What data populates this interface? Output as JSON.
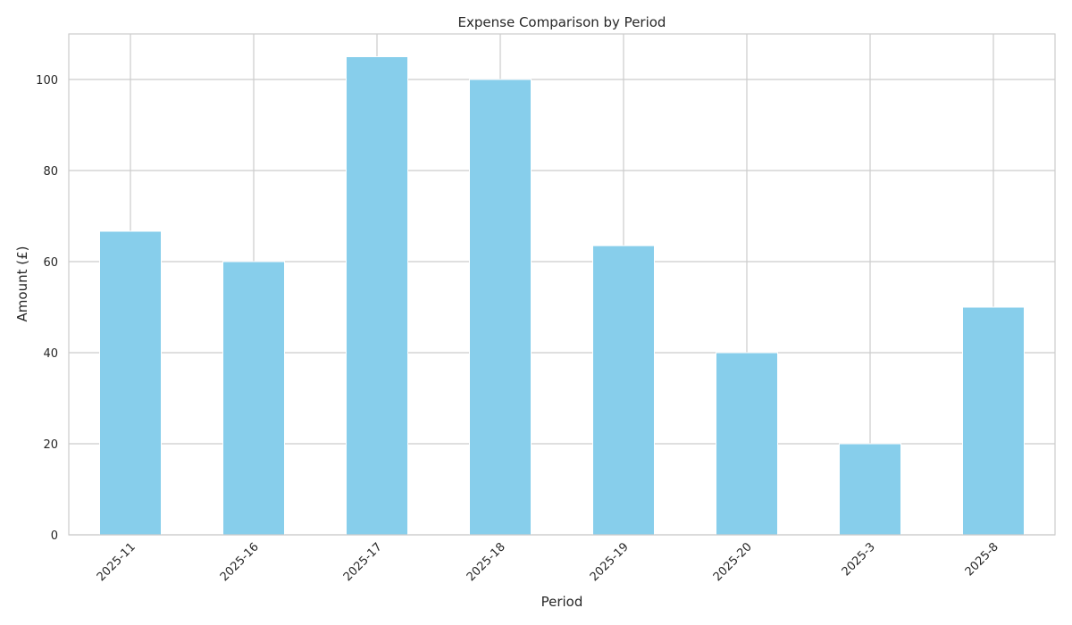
{
  "chart_data": {
    "type": "bar",
    "title": "Expense Comparison by Period",
    "xlabel": "Period",
    "ylabel": "Amount (£)",
    "categories": [
      "2025-11",
      "2025-16",
      "2025-17",
      "2025-18",
      "2025-19",
      "2025-20",
      "2025-3",
      "2025-8"
    ],
    "values": [
      66.67,
      60,
      105,
      100,
      63.5,
      40,
      20,
      50
    ],
    "ylim": [
      0,
      110
    ],
    "yticks": [
      0,
      20,
      40,
      60,
      80,
      100
    ],
    "grid": true,
    "bar_color": "#87ceeb",
    "grid_color": "#cccccc",
    "spine_color": "#cccccc",
    "text_color": "#262626"
  }
}
